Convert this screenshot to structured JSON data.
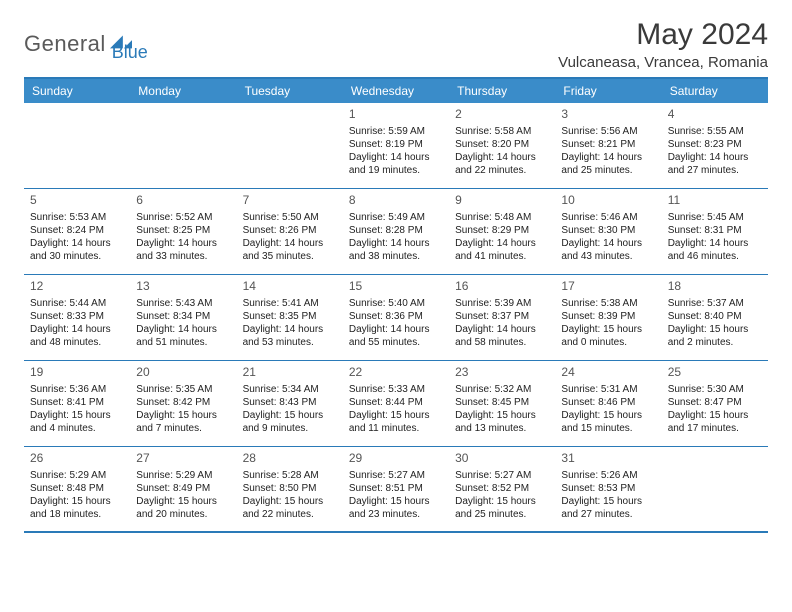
{
  "brand": {
    "part1": "General",
    "part2": "Blue"
  },
  "title": "May 2024",
  "location": "Vulcaneasa, Vrancea, Romania",
  "dows": [
    "Sunday",
    "Monday",
    "Tuesday",
    "Wednesday",
    "Thursday",
    "Friday",
    "Saturday"
  ],
  "colors": {
    "header_bg": "#3a8cc9",
    "border": "#2a7ab8"
  },
  "weeks": [
    [
      null,
      null,
      null,
      {
        "n": "1",
        "rise": "5:59 AM",
        "set": "8:19 PM",
        "dl": "14 hours and 19 minutes."
      },
      {
        "n": "2",
        "rise": "5:58 AM",
        "set": "8:20 PM",
        "dl": "14 hours and 22 minutes."
      },
      {
        "n": "3",
        "rise": "5:56 AM",
        "set": "8:21 PM",
        "dl": "14 hours and 25 minutes."
      },
      {
        "n": "4",
        "rise": "5:55 AM",
        "set": "8:23 PM",
        "dl": "14 hours and 27 minutes."
      }
    ],
    [
      {
        "n": "5",
        "rise": "5:53 AM",
        "set": "8:24 PM",
        "dl": "14 hours and 30 minutes."
      },
      {
        "n": "6",
        "rise": "5:52 AM",
        "set": "8:25 PM",
        "dl": "14 hours and 33 minutes."
      },
      {
        "n": "7",
        "rise": "5:50 AM",
        "set": "8:26 PM",
        "dl": "14 hours and 35 minutes."
      },
      {
        "n": "8",
        "rise": "5:49 AM",
        "set": "8:28 PM",
        "dl": "14 hours and 38 minutes."
      },
      {
        "n": "9",
        "rise": "5:48 AM",
        "set": "8:29 PM",
        "dl": "14 hours and 41 minutes."
      },
      {
        "n": "10",
        "rise": "5:46 AM",
        "set": "8:30 PM",
        "dl": "14 hours and 43 minutes."
      },
      {
        "n": "11",
        "rise": "5:45 AM",
        "set": "8:31 PM",
        "dl": "14 hours and 46 minutes."
      }
    ],
    [
      {
        "n": "12",
        "rise": "5:44 AM",
        "set": "8:33 PM",
        "dl": "14 hours and 48 minutes."
      },
      {
        "n": "13",
        "rise": "5:43 AM",
        "set": "8:34 PM",
        "dl": "14 hours and 51 minutes."
      },
      {
        "n": "14",
        "rise": "5:41 AM",
        "set": "8:35 PM",
        "dl": "14 hours and 53 minutes."
      },
      {
        "n": "15",
        "rise": "5:40 AM",
        "set": "8:36 PM",
        "dl": "14 hours and 55 minutes."
      },
      {
        "n": "16",
        "rise": "5:39 AM",
        "set": "8:37 PM",
        "dl": "14 hours and 58 minutes."
      },
      {
        "n": "17",
        "rise": "5:38 AM",
        "set": "8:39 PM",
        "dl": "15 hours and 0 minutes."
      },
      {
        "n": "18",
        "rise": "5:37 AM",
        "set": "8:40 PM",
        "dl": "15 hours and 2 minutes."
      }
    ],
    [
      {
        "n": "19",
        "rise": "5:36 AM",
        "set": "8:41 PM",
        "dl": "15 hours and 4 minutes."
      },
      {
        "n": "20",
        "rise": "5:35 AM",
        "set": "8:42 PM",
        "dl": "15 hours and 7 minutes."
      },
      {
        "n": "21",
        "rise": "5:34 AM",
        "set": "8:43 PM",
        "dl": "15 hours and 9 minutes."
      },
      {
        "n": "22",
        "rise": "5:33 AM",
        "set": "8:44 PM",
        "dl": "15 hours and 11 minutes."
      },
      {
        "n": "23",
        "rise": "5:32 AM",
        "set": "8:45 PM",
        "dl": "15 hours and 13 minutes."
      },
      {
        "n": "24",
        "rise": "5:31 AM",
        "set": "8:46 PM",
        "dl": "15 hours and 15 minutes."
      },
      {
        "n": "25",
        "rise": "5:30 AM",
        "set": "8:47 PM",
        "dl": "15 hours and 17 minutes."
      }
    ],
    [
      {
        "n": "26",
        "rise": "5:29 AM",
        "set": "8:48 PM",
        "dl": "15 hours and 18 minutes."
      },
      {
        "n": "27",
        "rise": "5:29 AM",
        "set": "8:49 PM",
        "dl": "15 hours and 20 minutes."
      },
      {
        "n": "28",
        "rise": "5:28 AM",
        "set": "8:50 PM",
        "dl": "15 hours and 22 minutes."
      },
      {
        "n": "29",
        "rise": "5:27 AM",
        "set": "8:51 PM",
        "dl": "15 hours and 23 minutes."
      },
      {
        "n": "30",
        "rise": "5:27 AM",
        "set": "8:52 PM",
        "dl": "15 hours and 25 minutes."
      },
      {
        "n": "31",
        "rise": "5:26 AM",
        "set": "8:53 PM",
        "dl": "15 hours and 27 minutes."
      },
      null
    ]
  ]
}
